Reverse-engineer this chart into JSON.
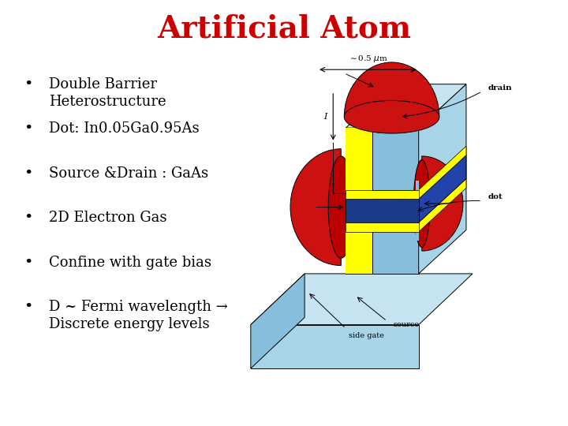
{
  "title": "Artificial Atom",
  "title_color": "#cc0000",
  "title_fontsize": 28,
  "title_fontstyle": "bold",
  "bullet_points": [
    "Double Barrier\nHeterostructure",
    "Dot: In0.05Ga0.95As",
    "Source &Drain : GaAs",
    "2D Electron Gas",
    "Confine with gate bias",
    "D ~ Fermi wavelength →\nDiscrete energy levels"
  ],
  "bullet_fontsize": 13,
  "bullet_color": "#000000",
  "background_color": "#ffffff",
  "diagram_colors": {
    "light_blue": "#87BEDB",
    "light_blue2": "#a8d4e8",
    "light_blue3": "#c5e3f0",
    "red": "#cc1111",
    "yellow": "#ffff00",
    "dark_blue": "#1a3a8a",
    "dark_blue2": "#2244aa"
  }
}
